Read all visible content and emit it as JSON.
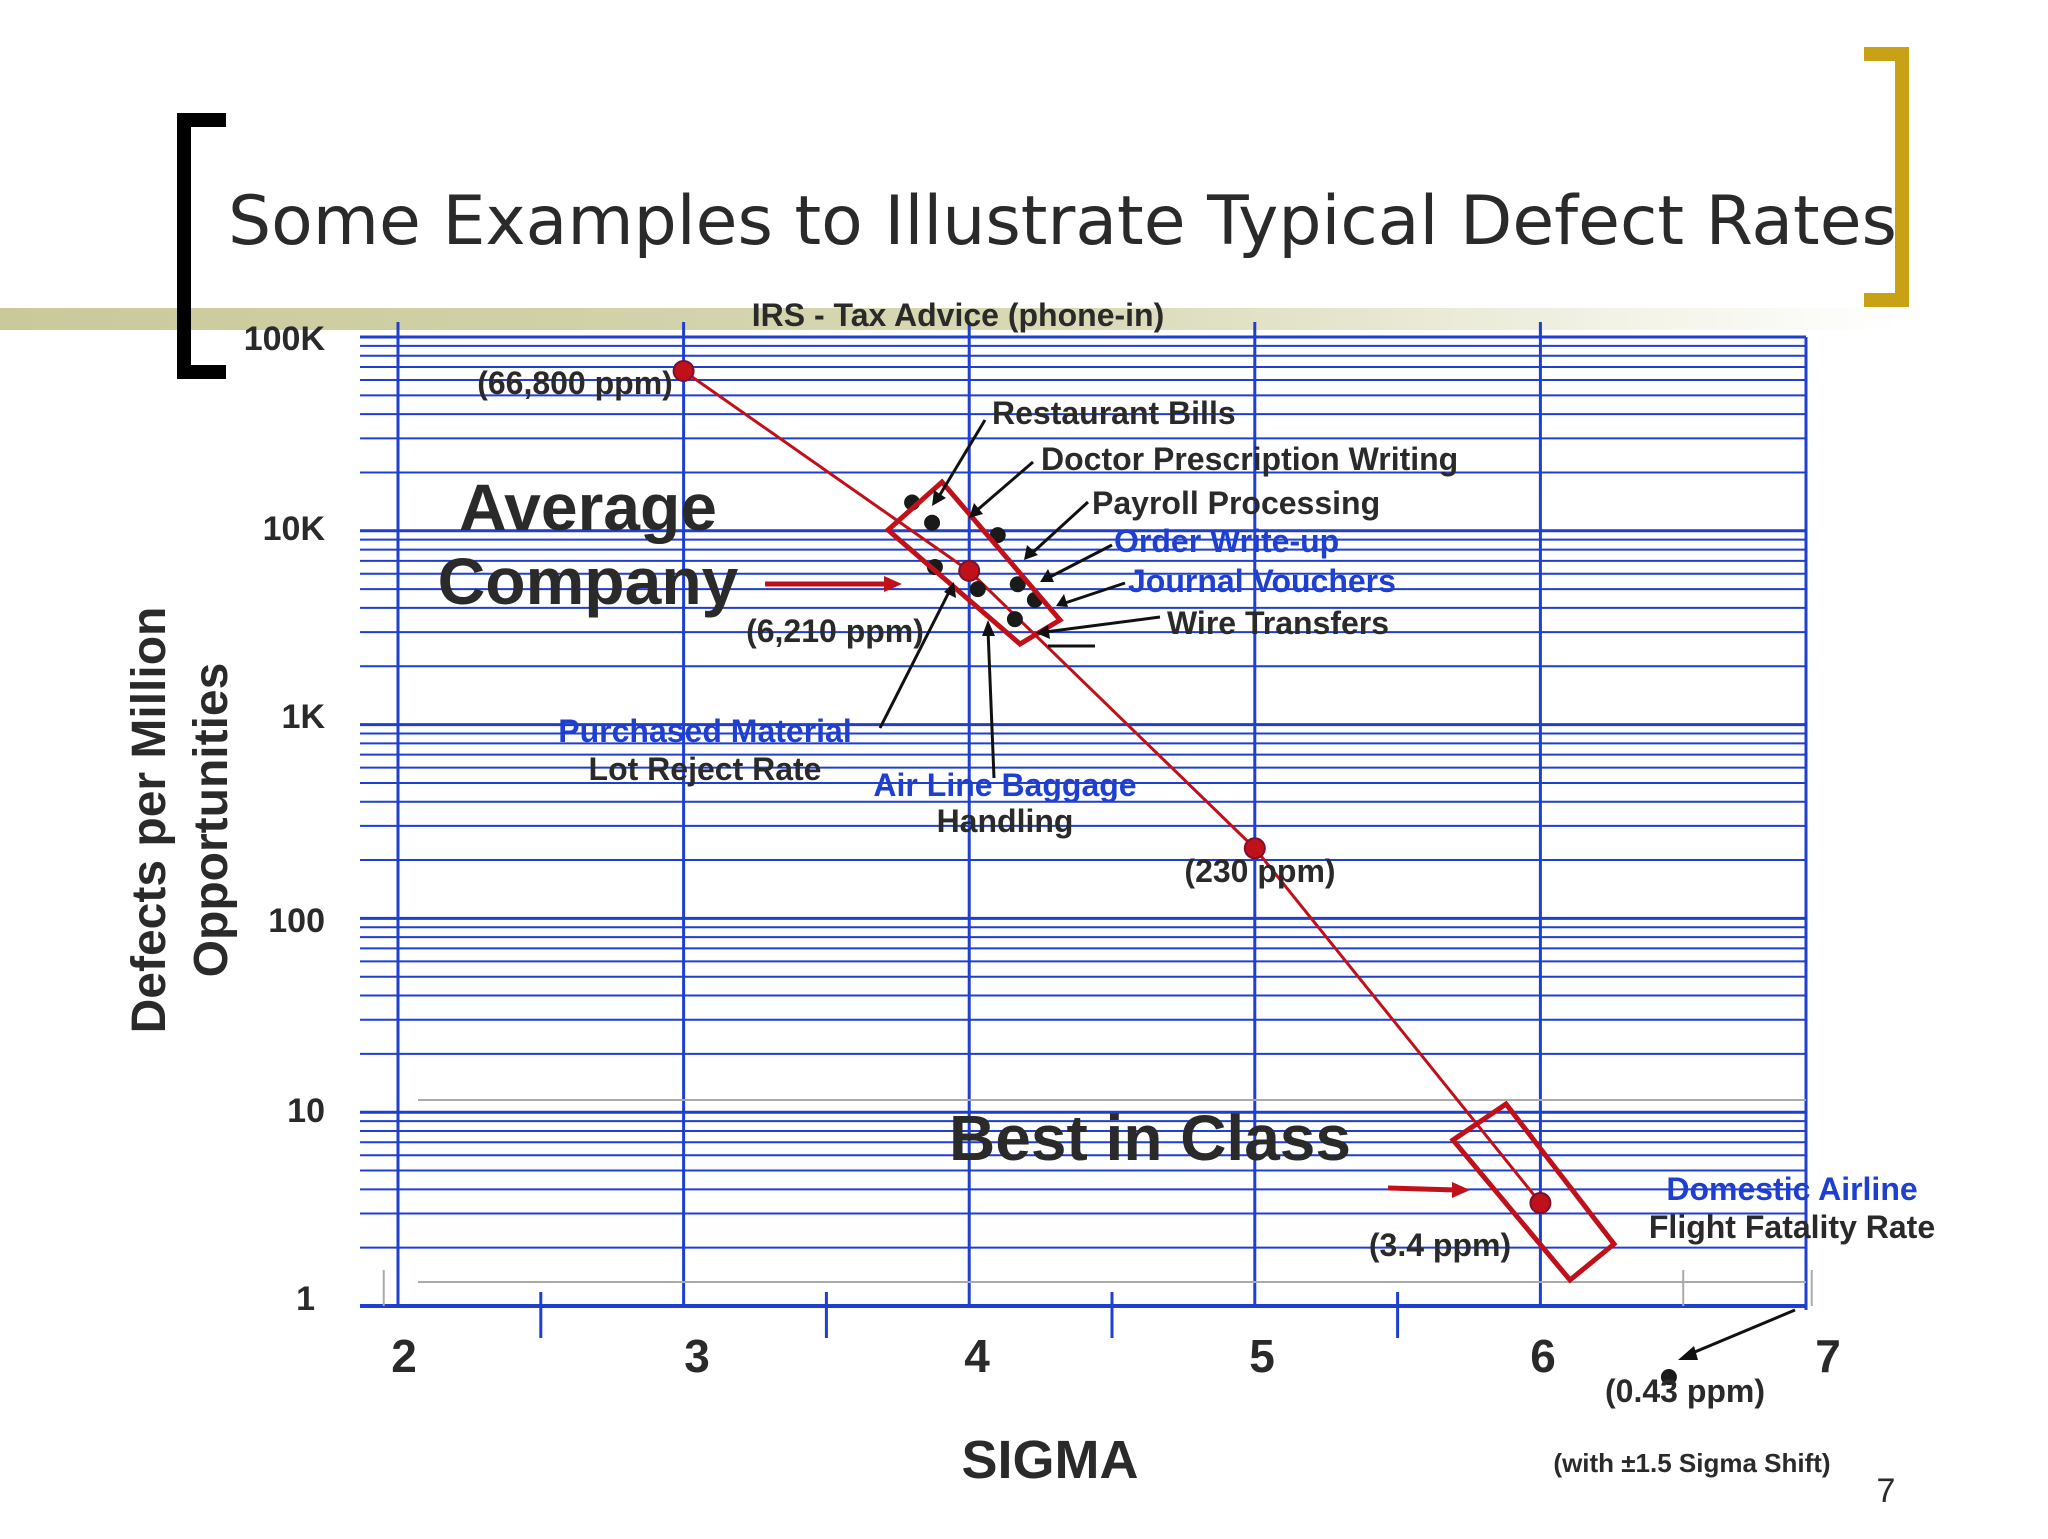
{
  "slide": {
    "title": "Some Examples to Illustrate Typical Defect Rates",
    "page_number": "7",
    "colors": {
      "accent_gold": "#C9A115",
      "bar_olive": "#C9C99A",
      "grid_blue": "#1F3FD0",
      "trend_red": "#C0101A",
      "text_dark": "#2A2A2A"
    }
  },
  "chart_data": {
    "type": "scatter",
    "xlabel": "SIGMA",
    "ylabel_line1": "Defects per Million",
    "ylabel_line2": "Opportunities",
    "x_ticks": [
      "2",
      "3",
      "4",
      "5",
      "6",
      "7"
    ],
    "y_ticks": [
      "1",
      "10",
      "100",
      "1K",
      "10K",
      "100K"
    ],
    "xlim": [
      2,
      7
    ],
    "ylim": [
      1,
      100000
    ],
    "y_scale": "log",
    "grid": true,
    "trend_line": [
      {
        "x": 3,
        "y": 66800
      },
      {
        "x": 4,
        "y": 6210
      },
      {
        "x": 5,
        "y": 230
      },
      {
        "x": 6,
        "y": 3.4
      }
    ],
    "benchmark_points": [
      {
        "x": 3,
        "y": 66800,
        "label": "(66,800 ppm)"
      },
      {
        "x": 4,
        "y": 6210,
        "label": "(6,210 ppm)"
      },
      {
        "x": 5,
        "y": 230,
        "label": "(230 ppm)"
      },
      {
        "x": 6,
        "y": 3.4,
        "label": "(3.4 ppm)"
      }
    ],
    "industry_points": [
      {
        "x": 3.8,
        "y": 14000
      },
      {
        "x": 3.87,
        "y": 11000
      },
      {
        "x": 4.1,
        "y": 9500
      },
      {
        "x": 3.88,
        "y": 6500
      },
      {
        "x": 4.03,
        "y": 5000
      },
      {
        "x": 4.17,
        "y": 5300
      },
      {
        "x": 4.23,
        "y": 4400
      },
      {
        "x": 4.16,
        "y": 3500
      },
      {
        "x": 6.45,
        "y": 0.43
      }
    ],
    "annotations": {
      "irs": "IRS - Tax Advice (phone-in)",
      "restaurant": "Restaurant Bills",
      "doctor": "Doctor Prescription Writing",
      "payroll": "Payroll Processing",
      "order": "Order Write-up",
      "journal": "Journal Vouchers",
      "wire": "Wire Transfers",
      "purchased_1": "Purchased Material",
      "purchased_2": "Lot Reject Rate",
      "airline_bag_1": "Air Line Baggage",
      "airline_bag_2": "Handling",
      "average_1": "Average",
      "average_2": "Company",
      "best": "Best in Class",
      "domestic_1": "Domestic Airline",
      "domestic_2": "Flight Fatality Rate",
      "shift_ppm": "(0.43 ppm)",
      "shift_note": "(with ±1.5 Sigma Shift)"
    }
  }
}
